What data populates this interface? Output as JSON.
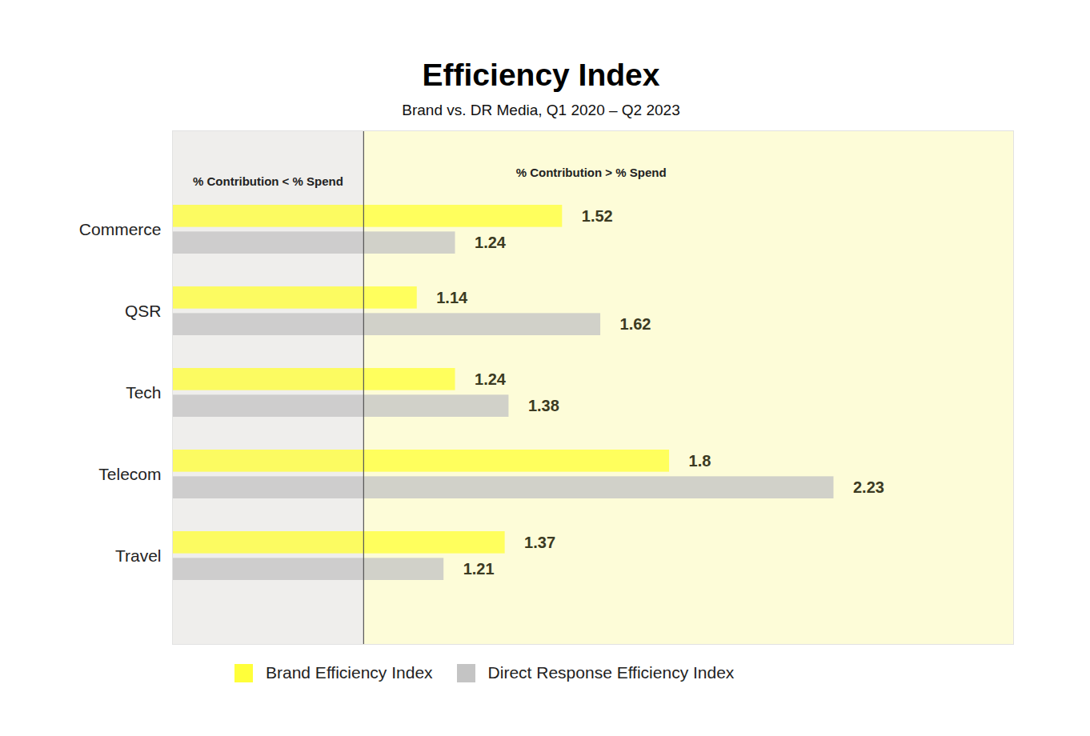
{
  "chart_data": {
    "type": "bar",
    "orientation": "horizontal",
    "title": "Efficiency Index",
    "subtitle": "Brand vs. DR Media, Q1 2020 – Q2 2023",
    "categories": [
      "Commerce",
      "QSR",
      "Tech",
      "Telecom",
      "Travel"
    ],
    "series": [
      {
        "name": "Brand Efficiency Index",
        "color": "#ffff3a",
        "values": [
          1.52,
          1.14,
          1.24,
          1.8,
          1.37
        ]
      },
      {
        "name": "Direct Response Efficiency Index",
        "color": "#c4c4c4",
        "values": [
          1.24,
          1.62,
          1.38,
          2.23,
          1.21
        ]
      }
    ],
    "xlim": [
      0.5,
      2.7
    ],
    "xticks": [
      1
    ],
    "tick_labels": "y",
    "data_labels": true,
    "legend": "bottom",
    "annotations": [
      "% Contribution < % Spend",
      "% Contribution > % Spend"
    ]
  }
}
